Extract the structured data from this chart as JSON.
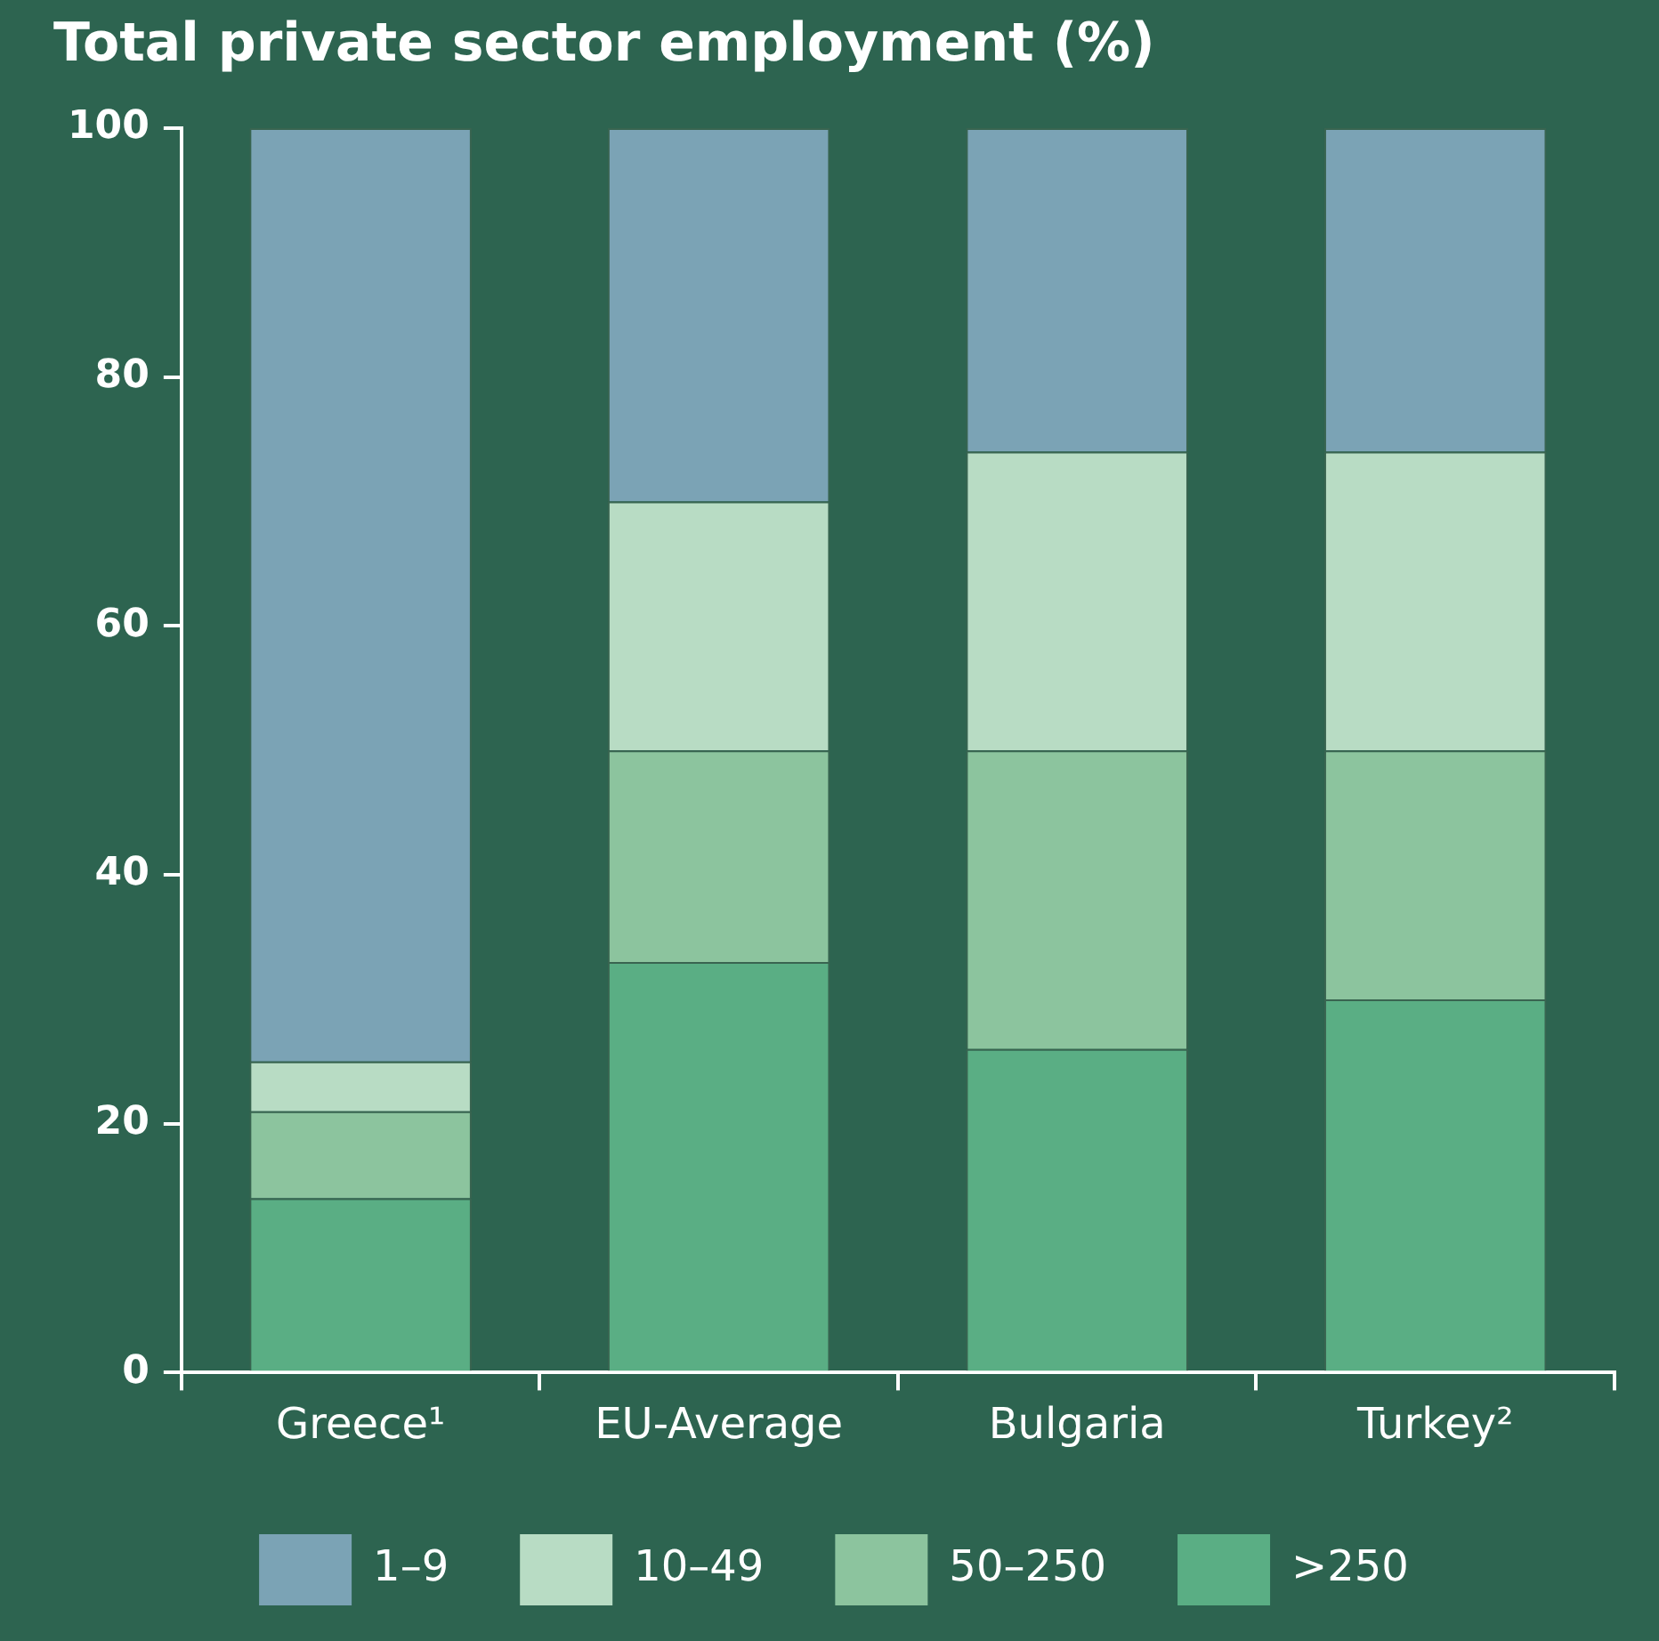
{
  "chart_data": {
    "type": "bar",
    "title": "Total private sector employment (%)",
    "stacked": true,
    "categories": [
      "Greece¹",
      "EU-Average",
      "Bulgaria",
      "Turkey²"
    ],
    "series": [
      {
        "name": ">250",
        "color": "#5aae84",
        "values": [
          14,
          33,
          26,
          30
        ]
      },
      {
        "name": "50–250",
        "color": "#8cc49e",
        "values": [
          7,
          17,
          24,
          20
        ]
      },
      {
        "name": "10–49",
        "color": "#b8dcc4",
        "values": [
          4,
          20,
          24,
          24
        ]
      },
      {
        "name": "1–9",
        "color": "#7ba3b5",
        "values": [
          75,
          30,
          26,
          26
        ]
      }
    ],
    "ylim": [
      0,
      100
    ],
    "yticks": [
      0,
      20,
      40,
      60,
      80,
      100
    ],
    "grid": false,
    "legend": "bottom"
  }
}
